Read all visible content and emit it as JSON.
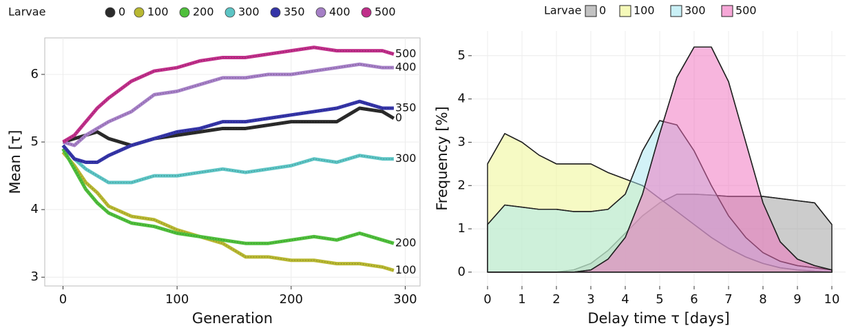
{
  "chart_data": [
    {
      "type": "line",
      "legend_title": "Larvae",
      "xlabel": "Generation",
      "ylabel": "Mean [τ]",
      "x": [
        0,
        10,
        20,
        30,
        40,
        60,
        80,
        100,
        120,
        140,
        160,
        180,
        200,
        220,
        240,
        260,
        280,
        290
      ],
      "series": [
        {
          "name": "0",
          "color": "#2b2b2b",
          "values": [
            5.0,
            5.05,
            5.1,
            5.15,
            5.05,
            4.95,
            5.05,
            5.1,
            5.15,
            5.2,
            5.2,
            5.25,
            5.3,
            5.3,
            5.3,
            5.5,
            5.45,
            5.35
          ]
        },
        {
          "name": "100",
          "color": "#b8b832",
          "values": [
            4.85,
            4.65,
            4.4,
            4.25,
            4.05,
            3.9,
            3.85,
            3.7,
            3.6,
            3.5,
            3.3,
            3.3,
            3.25,
            3.25,
            3.2,
            3.2,
            3.15,
            3.1
          ]
        },
        {
          "name": "200",
          "color": "#4fbf3c",
          "values": [
            4.9,
            4.6,
            4.3,
            4.1,
            3.95,
            3.8,
            3.75,
            3.65,
            3.6,
            3.55,
            3.5,
            3.5,
            3.55,
            3.6,
            3.55,
            3.65,
            3.55,
            3.5
          ]
        },
        {
          "name": "300",
          "color": "#5cc4c4",
          "values": [
            4.95,
            4.75,
            4.6,
            4.5,
            4.4,
            4.4,
            4.5,
            4.5,
            4.55,
            4.6,
            4.55,
            4.6,
            4.65,
            4.75,
            4.7,
            4.8,
            4.75,
            4.75
          ]
        },
        {
          "name": "350",
          "color": "#3535a8",
          "values": [
            4.95,
            4.75,
            4.7,
            4.7,
            4.8,
            4.95,
            5.05,
            5.15,
            5.2,
            5.3,
            5.3,
            5.35,
            5.4,
            5.45,
            5.5,
            5.6,
            5.5,
            5.5
          ]
        },
        {
          "name": "400",
          "color": "#a57fc6",
          "values": [
            5.0,
            4.95,
            5.1,
            5.2,
            5.3,
            5.45,
            5.7,
            5.75,
            5.85,
            5.95,
            5.95,
            6.0,
            6.0,
            6.05,
            6.1,
            6.15,
            6.1,
            6.1
          ]
        },
        {
          "name": "500",
          "color": "#c02f8a",
          "values": [
            5.0,
            5.1,
            5.3,
            5.5,
            5.65,
            5.9,
            6.05,
            6.1,
            6.2,
            6.25,
            6.25,
            6.3,
            6.35,
            6.4,
            6.35,
            6.35,
            6.35,
            6.3
          ]
        }
      ],
      "xlim": [
        -16,
        313
      ],
      "ylim": [
        2.87,
        6.54
      ],
      "xticks": [
        0,
        100,
        200,
        300
      ],
      "yticks": [
        3,
        4,
        5,
        6
      ],
      "grid": true
    },
    {
      "type": "area",
      "legend_title": "Larvae",
      "xlabel": "Delay time τ [days]",
      "ylabel": "Frequency [%]",
      "x": [
        0,
        0.5,
        1,
        1.5,
        2,
        2.5,
        3,
        3.5,
        4,
        4.5,
        5,
        5.5,
        6,
        6.5,
        7,
        7.5,
        8,
        8.5,
        9,
        9.5,
        10
      ],
      "series": [
        {
          "name": "0",
          "color": "#9a9a9a",
          "values": [
            0,
            0,
            0,
            0,
            0,
            0.05,
            0.2,
            0.5,
            0.9,
            1.3,
            1.6,
            1.8,
            1.8,
            1.78,
            1.75,
            1.75,
            1.75,
            1.7,
            1.65,
            1.6,
            1.1
          ]
        },
        {
          "name": "100",
          "color": "#eef58a",
          "values": [
            2.5,
            3.2,
            3.0,
            2.7,
            2.5,
            2.5,
            2.5,
            2.3,
            2.15,
            2.0,
            1.7,
            1.4,
            1.1,
            0.8,
            0.55,
            0.35,
            0.2,
            0.1,
            0.05,
            0.02,
            0
          ]
        },
        {
          "name": "300",
          "color": "#a5e6f0",
          "values": [
            1.1,
            1.55,
            1.5,
            1.45,
            1.45,
            1.4,
            1.4,
            1.45,
            1.8,
            2.8,
            3.5,
            3.4,
            2.8,
            2.0,
            1.3,
            0.8,
            0.45,
            0.25,
            0.15,
            0.1,
            0.05
          ]
        },
        {
          "name": "500",
          "color": "#f06cbc",
          "values": [
            0,
            0,
            0,
            0,
            0,
            0,
            0.05,
            0.3,
            0.8,
            1.8,
            3.2,
            4.5,
            5.2,
            5.2,
            4.4,
            3.0,
            1.6,
            0.7,
            0.3,
            0.15,
            0.05
          ]
        }
      ],
      "xlim": [
        -0.46,
        10.4
      ],
      "ylim": [
        -0.32,
        5.57
      ],
      "xticks": [
        0,
        1,
        2,
        3,
        4,
        5,
        6,
        7,
        8,
        9,
        10
      ],
      "yticks": [
        0,
        1,
        2,
        3,
        4,
        5
      ],
      "grid": true
    }
  ]
}
